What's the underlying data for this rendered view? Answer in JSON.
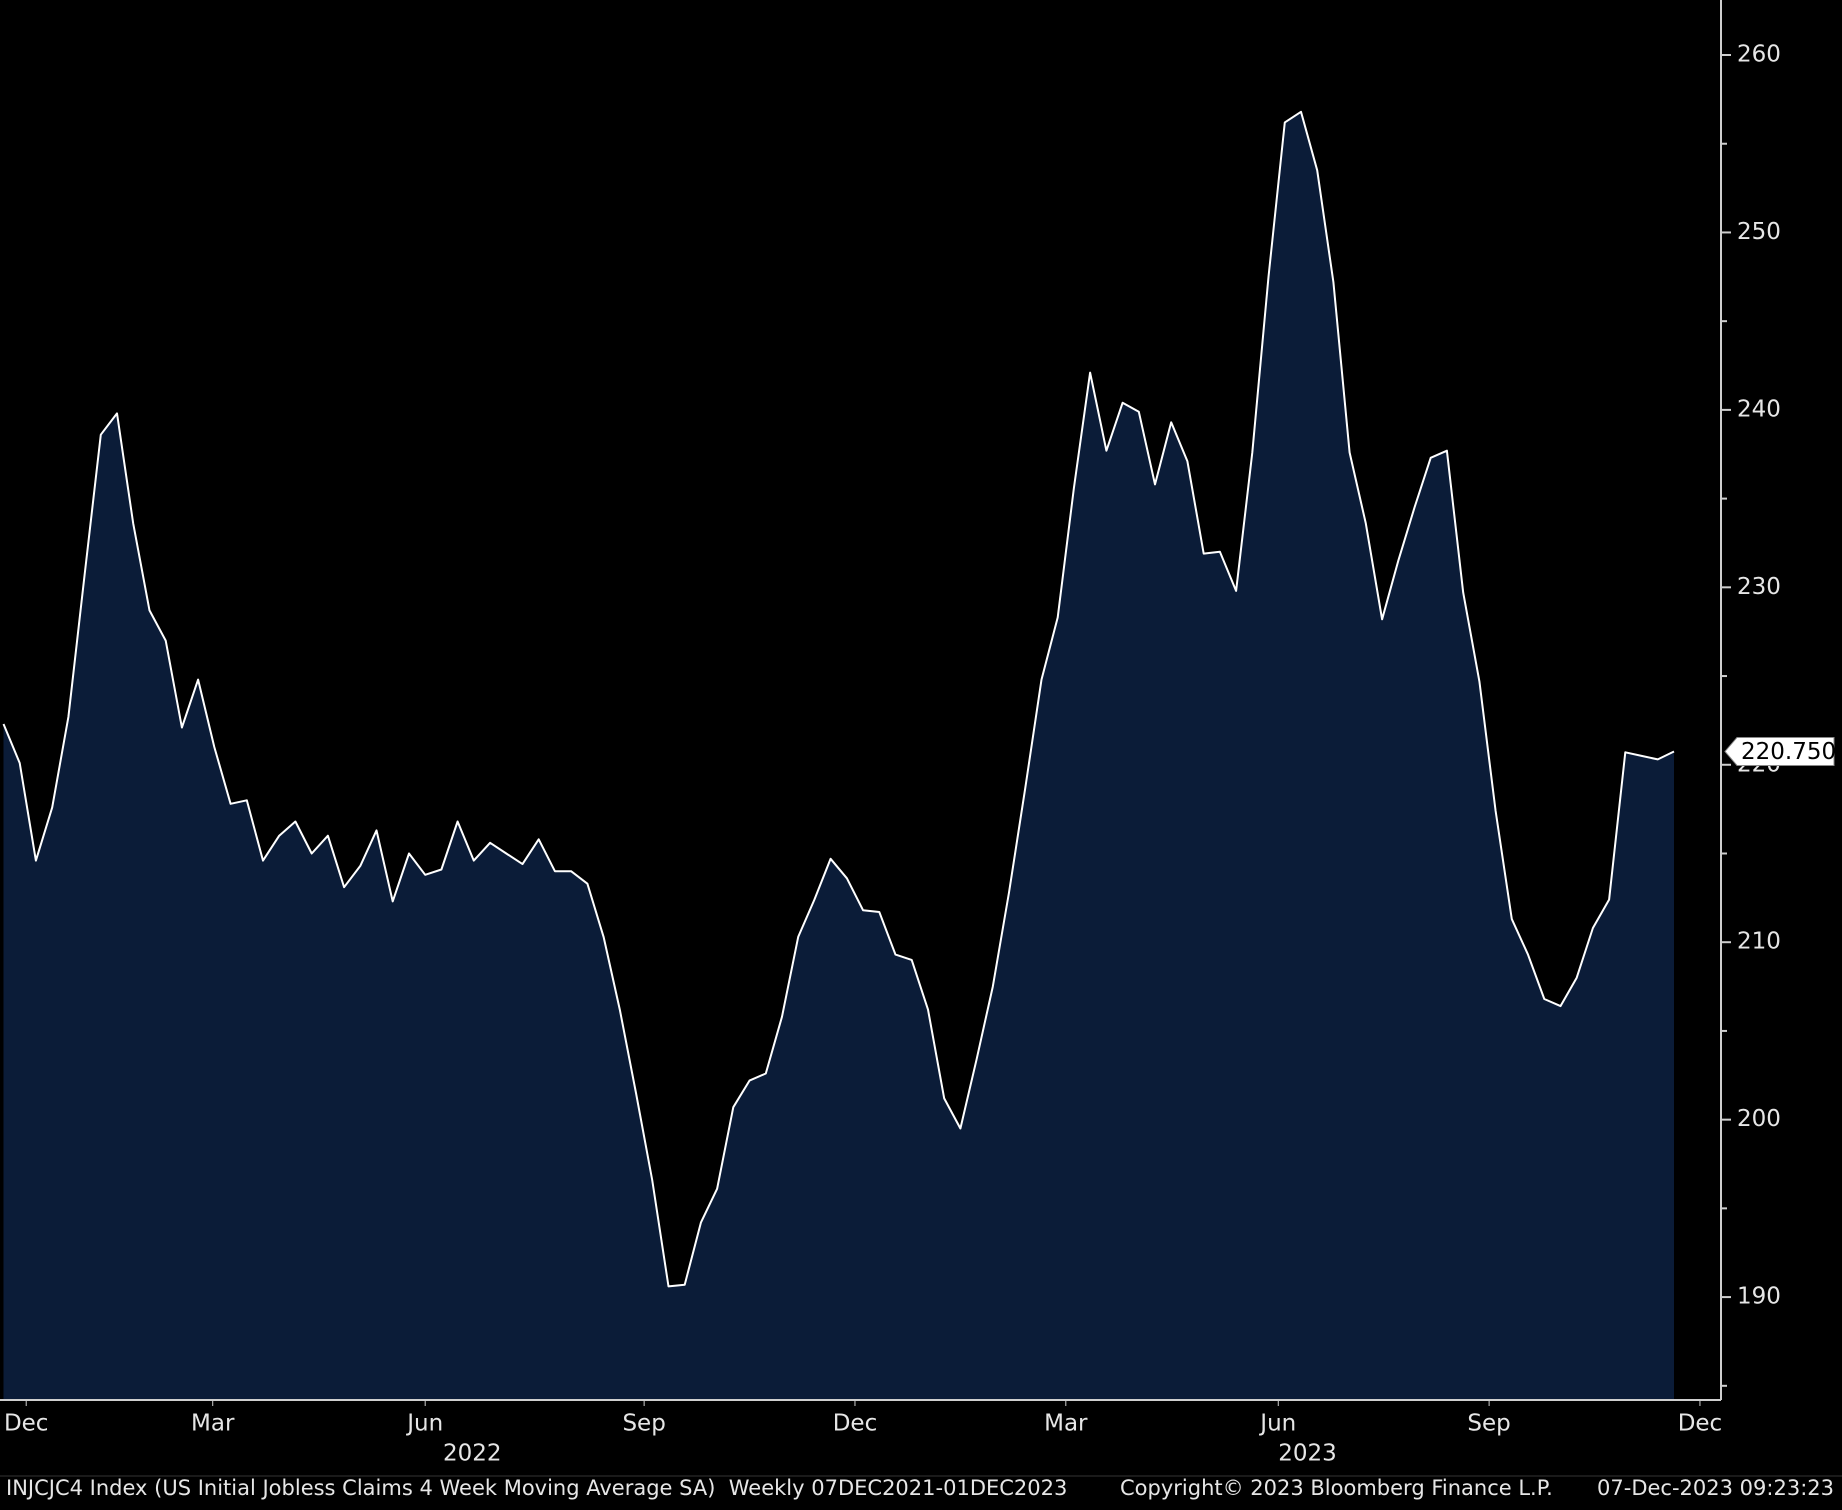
{
  "chart_data": {
    "type": "area",
    "values": [
      222.3,
      220.1,
      214.6,
      217.6,
      222.7,
      230.7,
      238.6,
      239.8,
      233.6,
      228.7,
      227.0,
      222.1,
      224.8,
      221.0,
      217.8,
      218.0,
      214.6,
      216.0,
      216.8,
      215.0,
      216.0,
      213.1,
      214.3,
      216.3,
      212.3,
      215.0,
      213.8,
      214.1,
      216.8,
      214.6,
      215.6,
      215.0,
      214.4,
      215.8,
      214.0,
      214.0,
      213.3,
      210.3,
      206.2,
      201.5,
      196.6,
      190.6,
      190.7,
      194.2,
      196.1,
      200.7,
      202.2,
      202.6,
      205.8,
      210.3,
      212.4,
      214.7,
      213.6,
      211.8,
      211.7,
      209.3,
      209.0,
      206.2,
      201.2,
      199.5,
      203.4,
      207.5,
      212.8,
      218.7,
      224.8,
      228.3,
      235.6,
      242.1,
      237.7,
      240.4,
      239.9,
      235.8,
      239.3,
      237.1,
      231.9,
      232.0,
      229.8,
      237.6,
      247.5,
      256.2,
      256.8,
      253.5,
      247.2,
      237.6,
      233.6,
      228.2,
      231.5,
      234.5,
      237.3,
      237.7,
      229.7,
      224.7,
      217.4,
      211.3,
      209.3,
      206.8,
      206.4,
      208.0,
      210.8,
      212.4,
      220.7,
      220.5,
      220.3,
      220.75
    ],
    "last_value_label": "220.750",
    "color": "#0b1c38",
    "line_color": "#ffffff",
    "xlim": [
      0,
      103
    ],
    "xticks": [
      {
        "value": 1.4,
        "label": "Dec"
      },
      {
        "value": 12.9,
        "label": "Mar"
      },
      {
        "value": 26.0,
        "label": "Jun"
      },
      {
        "value": 39.5,
        "label": "Sep"
      },
      {
        "value": 52.5,
        "label": "Dec"
      },
      {
        "value": 65.5,
        "label": "Mar"
      },
      {
        "value": 78.6,
        "label": "Jun"
      },
      {
        "value": 91.6,
        "label": "Sep"
      },
      {
        "value": 104.6,
        "label": "Dec"
      }
    ],
    "x_group_labels": [
      {
        "value": 28.9,
        "label": "2022"
      },
      {
        "value": 80.4,
        "label": "2023"
      }
    ],
    "ylim": [
      184.2,
      263.1
    ],
    "yticks": [
      190,
      200,
      210,
      220,
      230,
      240,
      250,
      260
    ],
    "yminor_ticks": [
      185,
      195,
      205,
      215,
      225,
      235,
      245,
      255
    ],
    "footer_left": "INJCJC4 Index (US Initial Jobless Claims 4 Week Moving Average SA)  Weekly 07DEC2021-01DEC2023",
    "footer_center": "Copyright© 2023 Bloomberg Finance L.P.",
    "footer_right": "07-Dec-2023 09:23:23"
  }
}
